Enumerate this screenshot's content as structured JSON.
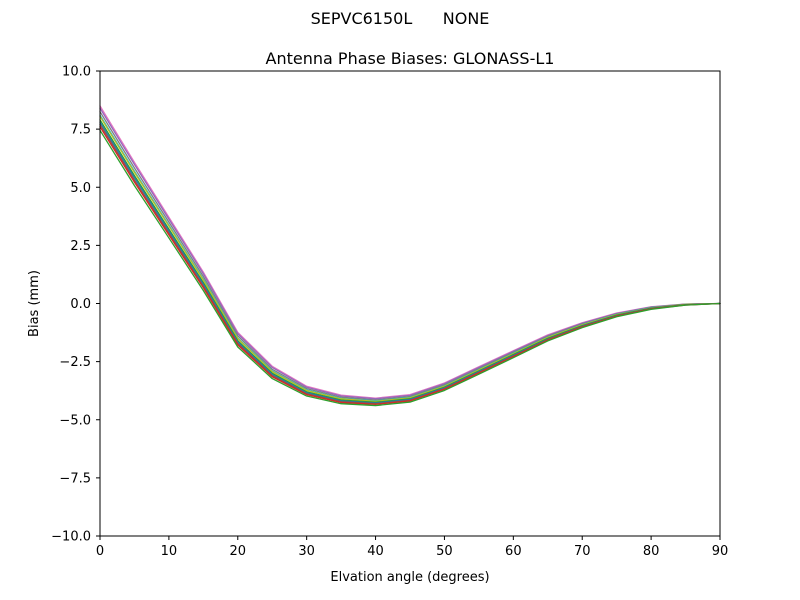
{
  "header": {
    "suptitle": "SEPVC6150L      NONE",
    "title": "Antenna Phase Biases: GLONASS-L1"
  },
  "chart_data": {
    "type": "line",
    "title": "Antenna Phase Biases: GLONASS-L1",
    "xlabel": "Elvation angle (degrees)",
    "ylabel": "Bias (mm)",
    "xlim": [
      0,
      90
    ],
    "ylim": [
      -10,
      10
    ],
    "grid": false,
    "legend": "none",
    "xticks": [
      0,
      10,
      20,
      30,
      40,
      50,
      60,
      70,
      80,
      90
    ],
    "xtick_labels": [
      "0",
      "10",
      "20",
      "30",
      "40",
      "50",
      "60",
      "70",
      "80",
      "90"
    ],
    "yticks": [
      -10,
      -7.5,
      -5,
      -2.5,
      0,
      2.5,
      5,
      7.5,
      10
    ],
    "ytick_labels": [
      "−10.0",
      "−7.5",
      "−5.0",
      "−2.5",
      "0.0",
      "2.5",
      "5.0",
      "7.5",
      "10.0"
    ],
    "x": [
      0,
      5,
      10,
      15,
      20,
      25,
      30,
      35,
      40,
      45,
      50,
      55,
      60,
      65,
      70,
      75,
      80,
      85,
      90
    ],
    "series": [
      {
        "name": "line-01",
        "color": "#e377c2",
        "values": [
          8.5,
          6.07,
          3.71,
          1.35,
          -1.24,
          -2.7,
          -3.56,
          -3.94,
          -4.07,
          -3.92,
          -3.42,
          -2.72,
          -2.03,
          -1.35,
          -0.83,
          -0.41,
          -0.14,
          -0.02,
          0.0
        ]
      },
      {
        "name": "line-02",
        "color": "#9467bd",
        "values": [
          8.4,
          5.98,
          3.63,
          1.28,
          -1.3,
          -2.75,
          -3.6,
          -3.98,
          -4.1,
          -3.95,
          -3.45,
          -2.75,
          -2.06,
          -1.38,
          -0.85,
          -0.43,
          -0.15,
          -0.03,
          0.0
        ]
      },
      {
        "name": "line-03",
        "color": "#7f7f7f",
        "values": [
          8.25,
          5.83,
          3.5,
          1.16,
          -1.39,
          -2.83,
          -3.66,
          -4.03,
          -4.15,
          -4.0,
          -3.5,
          -2.8,
          -2.1,
          -1.41,
          -0.88,
          -0.45,
          -0.17,
          -0.03,
          0.0
        ]
      },
      {
        "name": "line-04",
        "color": "#17becf",
        "values": [
          8.1,
          5.69,
          3.37,
          1.05,
          -1.48,
          -2.9,
          -3.72,
          -4.08,
          -4.19,
          -4.04,
          -3.54,
          -2.84,
          -2.14,
          -1.45,
          -0.91,
          -0.47,
          -0.18,
          -0.04,
          0.0
        ]
      },
      {
        "name": "line-05",
        "color": "#bcbd22",
        "values": [
          8.05,
          5.64,
          3.33,
          1.01,
          -1.51,
          -2.93,
          -3.74,
          -4.1,
          -4.21,
          -4.06,
          -3.56,
          -2.86,
          -2.16,
          -1.46,
          -0.92,
          -0.48,
          -0.19,
          -0.04,
          0.0
        ]
      },
      {
        "name": "line-06",
        "color": "#2ca02c",
        "values": [
          7.9,
          5.5,
          3.2,
          0.9,
          -1.6,
          -3.0,
          -3.8,
          -4.15,
          -4.25,
          -4.1,
          -3.6,
          -2.9,
          -2.2,
          -1.5,
          -0.95,
          -0.5,
          -0.2,
          -0.05,
          0.0
        ]
      },
      {
        "name": "line-07",
        "color": "#1f77b4",
        "values": [
          7.8,
          5.41,
          3.12,
          0.83,
          -1.66,
          -3.05,
          -3.84,
          -4.19,
          -4.28,
          -4.13,
          -3.63,
          -2.93,
          -2.23,
          -1.53,
          -0.97,
          -0.52,
          -0.21,
          -0.06,
          0.0
        ]
      },
      {
        "name": "line-08",
        "color": "#8c564b",
        "values": [
          7.7,
          5.31,
          3.03,
          0.75,
          -1.72,
          -3.1,
          -3.88,
          -4.22,
          -4.31,
          -4.16,
          -3.66,
          -2.96,
          -2.26,
          -1.55,
          -0.99,
          -0.53,
          -0.22,
          -0.06,
          0.0
        ]
      },
      {
        "name": "line-09",
        "color": "#d62728",
        "values": [
          7.6,
          5.22,
          2.95,
          0.68,
          -1.78,
          -3.15,
          -3.92,
          -4.26,
          -4.34,
          -4.19,
          -3.69,
          -2.99,
          -2.28,
          -1.58,
          -1.01,
          -0.55,
          -0.23,
          -0.07,
          0.0
        ]
      },
      {
        "name": "line-10",
        "color": "#2ca02c",
        "values": [
          7.45,
          5.07,
          2.82,
          0.56,
          -1.87,
          -3.23,
          -3.98,
          -4.31,
          -4.39,
          -4.24,
          -3.74,
          -3.04,
          -2.33,
          -1.61,
          -1.04,
          -0.57,
          -0.25,
          -0.07,
          0.0
        ]
      }
    ]
  }
}
